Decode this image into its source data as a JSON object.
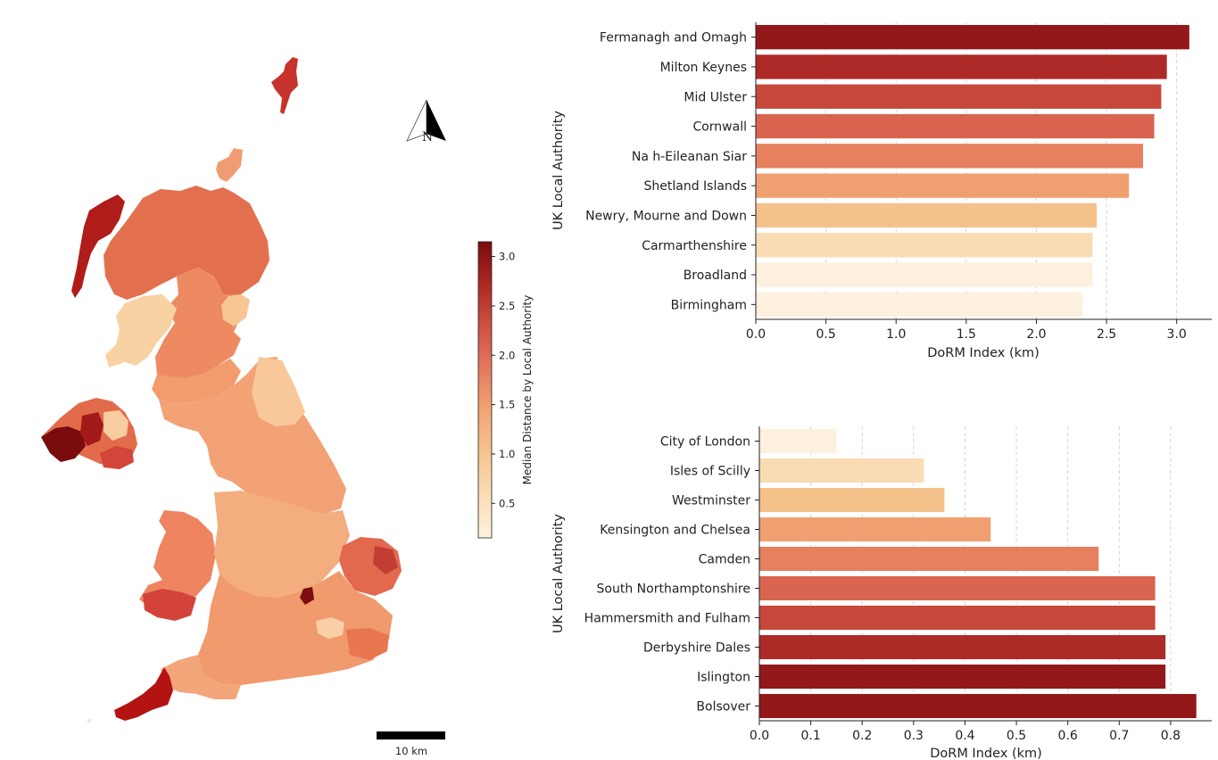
{
  "map": {
    "colorbar": {
      "label": "Median Distance by Local Authority",
      "ticks": [
        "0.5",
        "1.0",
        "1.5",
        "2.0",
        "2.5",
        "3.0"
      ],
      "tick_values": [
        0.5,
        1.0,
        1.5,
        2.0,
        2.5,
        3.0
      ],
      "range": [
        0.15,
        3.15
      ]
    },
    "north_arrow_label": "N",
    "scale_bar_label": "10 km"
  },
  "colors": {
    "ramp": [
      "#fef0df",
      "#f9dcb4",
      "#f5c18b",
      "#f0a070",
      "#e6805f",
      "#d9644f",
      "#c7473a",
      "#ad2a27",
      "#93181a",
      "#7a0b0e"
    ]
  },
  "chart_data": [
    {
      "type": "bar",
      "orientation": "horizontal",
      "categories": [
        "Fermanagh and Omagh",
        "Milton Keynes",
        "Mid Ulster",
        "Cornwall",
        "Na h-Eileanan Siar",
        "Shetland Islands",
        "Newry, Mourne and Down",
        "Carmarthenshire",
        "Broadland",
        "Birmingham"
      ],
      "values": [
        3.09,
        2.93,
        2.89,
        2.84,
        2.76,
        2.66,
        2.43,
        2.4,
        2.4,
        2.33
      ],
      "xlabel": "DoRM Index (km)",
      "ylabel": "UK Local Authority",
      "xlim": [
        0,
        3.25
      ],
      "xticks": [
        "0.0",
        "0.5",
        "1.0",
        "1.5",
        "2.0",
        "2.5",
        "3.0"
      ],
      "xtick_values": [
        0,
        0.5,
        1.0,
        1.5,
        2.0,
        2.5,
        3.0
      ],
      "grid": "vertical dashed"
    },
    {
      "type": "bar",
      "orientation": "horizontal",
      "categories": [
        "City of London",
        "Isles of Scilly",
        "Westminster",
        "Kensington and Chelsea",
        "Camden",
        "South Northamptonshire",
        "Hammersmith and Fulham",
        "Derbyshire Dales",
        "Islington",
        "Bolsover"
      ],
      "values": [
        0.15,
        0.32,
        0.36,
        0.45,
        0.66,
        0.77,
        0.77,
        0.79,
        0.79,
        0.85
      ],
      "xlabel": "DoRM Index (km)",
      "ylabel": "UK Local Authority",
      "xlim": [
        0,
        0.88
      ],
      "xticks": [
        "0.0",
        "0.1",
        "0.2",
        "0.3",
        "0.4",
        "0.5",
        "0.6",
        "0.7",
        "0.8"
      ],
      "xtick_values": [
        0,
        0.1,
        0.2,
        0.3,
        0.4,
        0.5,
        0.6,
        0.7,
        0.8
      ],
      "grid": "vertical dashed"
    }
  ]
}
